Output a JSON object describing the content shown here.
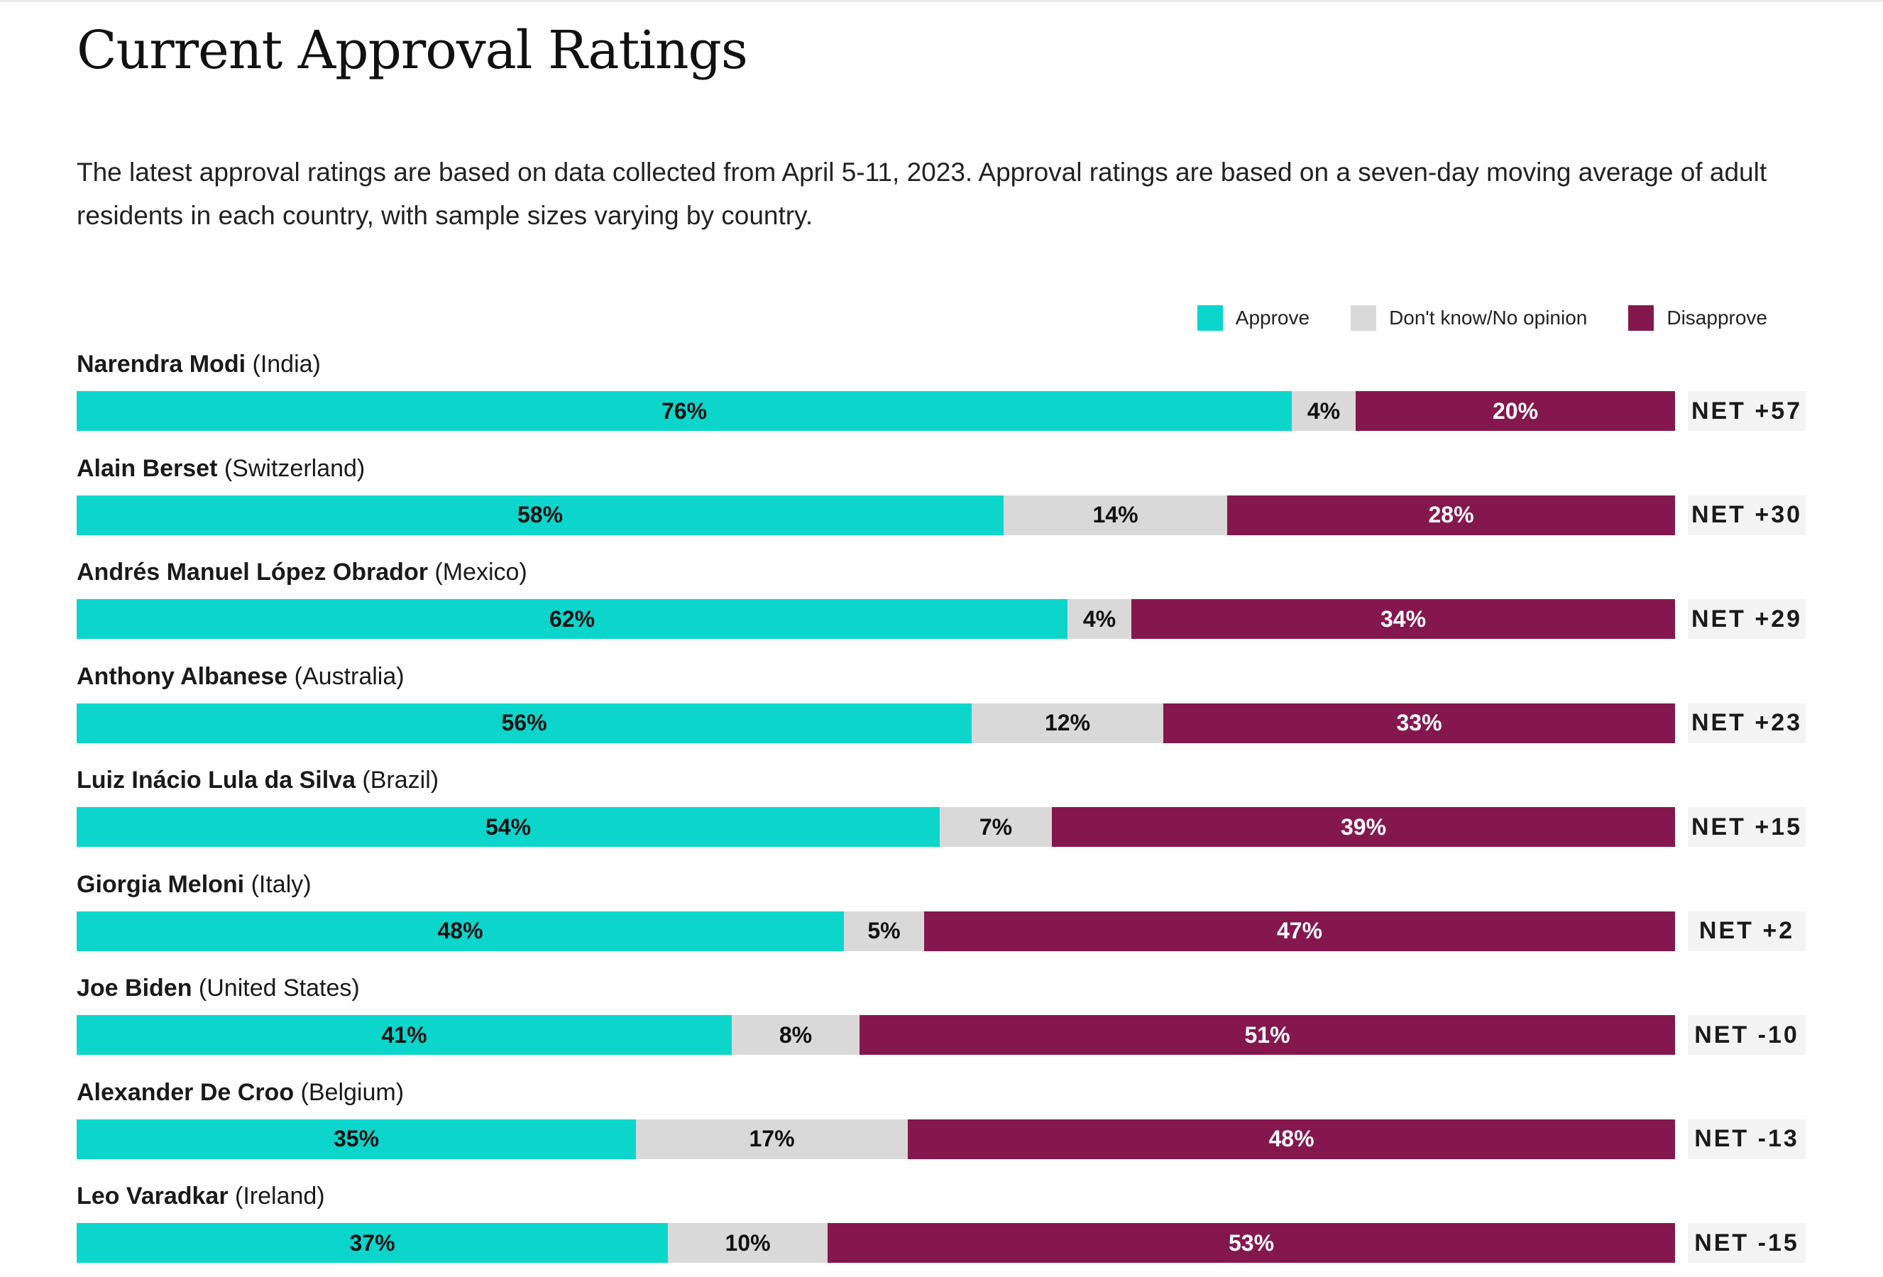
{
  "page": {
    "title": "Current Approval Ratings",
    "description": "The latest approval ratings are based on data collected from April 5-11, 2023. Approval ratings are based on a seven-day moving average of adult residents in each country, with sample sizes varying by country."
  },
  "legend": {
    "approve": "Approve",
    "neutral": "Don't know/No opinion",
    "disapprove": "Disapprove"
  },
  "colors": {
    "approve": "#0cd6cc",
    "neutral": "#d9d9d9",
    "disapprove": "#84184e",
    "approve_text": "#111111",
    "neutral_text": "#111111",
    "disapprove_text": "#ffffff"
  },
  "chart_data": {
    "type": "bar",
    "orientation": "horizontal",
    "stacked": true,
    "title": "Current Approval Ratings",
    "xlim": [
      0,
      100
    ],
    "value_format": "percent",
    "legend_position": "top-right",
    "series": [
      {
        "key": "approve",
        "name": "Approve",
        "values": [
          76,
          58,
          62,
          56,
          54,
          48,
          41,
          35,
          37
        ]
      },
      {
        "key": "neutral",
        "name": "Don't know/No opinion",
        "values": [
          4,
          14,
          4,
          12,
          7,
          5,
          8,
          17,
          10
        ]
      },
      {
        "key": "disapprove",
        "name": "Disapprove",
        "values": [
          20,
          28,
          34,
          33,
          39,
          47,
          51,
          48,
          53
        ]
      }
    ],
    "rows": [
      {
        "name": "Narendra Modi",
        "country": "(India)",
        "approve": 76,
        "neutral": 4,
        "disapprove": 20,
        "approve_label": "76%",
        "neutral_label": "4%",
        "disapprove_label": "20%",
        "net": "NET +57"
      },
      {
        "name": "Alain Berset",
        "country": "(Switzerland)",
        "approve": 58,
        "neutral": 14,
        "disapprove": 28,
        "approve_label": "58%",
        "neutral_label": "14%",
        "disapprove_label": "28%",
        "net": "NET +30"
      },
      {
        "name": "Andrés Manuel López Obrador",
        "country": "(Mexico)",
        "approve": 62,
        "neutral": 4,
        "disapprove": 34,
        "approve_label": "62%",
        "neutral_label": "4%",
        "disapprove_label": "34%",
        "net": "NET +29"
      },
      {
        "name": "Anthony Albanese",
        "country": "(Australia)",
        "approve": 56,
        "neutral": 12,
        "disapprove": 33,
        "approve_label": "56%",
        "neutral_label": "12%",
        "disapprove_label": "33%",
        "net": "NET +23"
      },
      {
        "name": "Luiz Inácio Lula da Silva",
        "country": "(Brazil)",
        "approve": 54,
        "neutral": 7,
        "disapprove": 39,
        "approve_label": "54%",
        "neutral_label": "7%",
        "disapprove_label": "39%",
        "net": "NET +15"
      },
      {
        "name": "Giorgia Meloni",
        "country": "(Italy)",
        "approve": 48,
        "neutral": 5,
        "disapprove": 47,
        "approve_label": "48%",
        "neutral_label": "5%",
        "disapprove_label": "47%",
        "net": "NET +2"
      },
      {
        "name": "Joe Biden",
        "country": "(United States)",
        "approve": 41,
        "neutral": 8,
        "disapprove": 51,
        "approve_label": "41%",
        "neutral_label": "8%",
        "disapprove_label": "51%",
        "net": "NET -10"
      },
      {
        "name": "Alexander De Croo",
        "country": "(Belgium)",
        "approve": 35,
        "neutral": 17,
        "disapprove": 48,
        "approve_label": "35%",
        "neutral_label": "17%",
        "disapprove_label": "48%",
        "net": "NET -13"
      },
      {
        "name": "Leo Varadkar",
        "country": "(Ireland)",
        "approve": 37,
        "neutral": 10,
        "disapprove": 53,
        "approve_label": "37%",
        "neutral_label": "10%",
        "disapprove_label": "53%",
        "net": "NET -15"
      }
    ]
  }
}
